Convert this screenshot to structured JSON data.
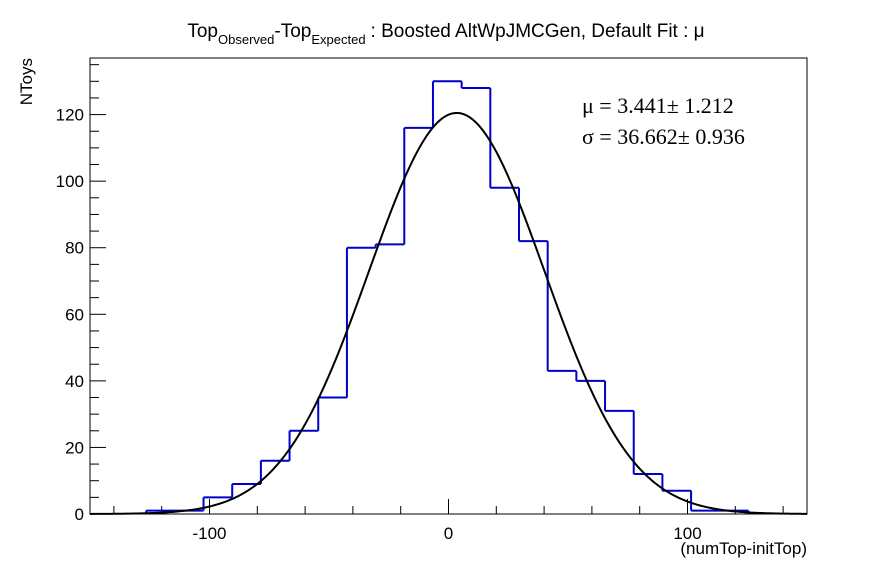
{
  "chart_data": {
    "type": "bar",
    "title_parts": {
      "main1": "Top",
      "sub1": "Observed",
      "main2": "-Top",
      "sub2": "Expected",
      "rest": ": Boosted AltWpJMCGen, Default Fit : μ"
    },
    "xlabel": "(numTop-initTop)",
    "ylabel": "NToys",
    "xlim": [
      -150,
      150
    ],
    "ylim": [
      0,
      137
    ],
    "x_ticks": [
      -100,
      0,
      100
    ],
    "y_ticks": [
      0,
      20,
      40,
      60,
      80,
      100,
      120
    ],
    "hist": {
      "name": "histogram",
      "color": "#0000cc",
      "bins": [
        {
          "x0": -126.5,
          "x1": -102.5,
          "y": 1
        },
        {
          "x0": -102.5,
          "x1": -90.5,
          "y": 5
        },
        {
          "x0": -90.5,
          "x1": -78.5,
          "y": 9
        },
        {
          "x0": -78.5,
          "x1": -66.5,
          "y": 16
        },
        {
          "x0": -66.5,
          "x1": -54.5,
          "y": 25
        },
        {
          "x0": -54.5,
          "x1": -42.5,
          "y": 35
        },
        {
          "x0": -42.5,
          "x1": -30.5,
          "y": 80
        },
        {
          "x0": -30.5,
          "x1": -18.5,
          "y": 81
        },
        {
          "x0": -18.5,
          "x1": -6.5,
          "y": 116
        },
        {
          "x0": -6.5,
          "x1": 5.5,
          "y": 130
        },
        {
          "x0": 5.5,
          "x1": 17.5,
          "y": 128
        },
        {
          "x0": 17.5,
          "x1": 29.5,
          "y": 98
        },
        {
          "x0": 29.5,
          "x1": 41.5,
          "y": 82
        },
        {
          "x0": 41.5,
          "x1": 53.5,
          "y": 43
        },
        {
          "x0": 53.5,
          "x1": 65.5,
          "y": 40
        },
        {
          "x0": 65.5,
          "x1": 77.5,
          "y": 31
        },
        {
          "x0": 77.5,
          "x1": 89.5,
          "y": 12
        },
        {
          "x0": 89.5,
          "x1": 101.5,
          "y": 7
        },
        {
          "x0": 101.5,
          "x1": 125.5,
          "y": 1
        }
      ]
    },
    "fit": {
      "name": "gaussian fit",
      "color": "#000000",
      "type": "gaussian",
      "amplitude": 120.5,
      "mean": 3.441,
      "sigma": 36.662
    },
    "stats": {
      "line1": "μ =  3.441± 1.212",
      "line2": "σ = 36.662± 0.936"
    },
    "grid": false,
    "legend": "none"
  }
}
